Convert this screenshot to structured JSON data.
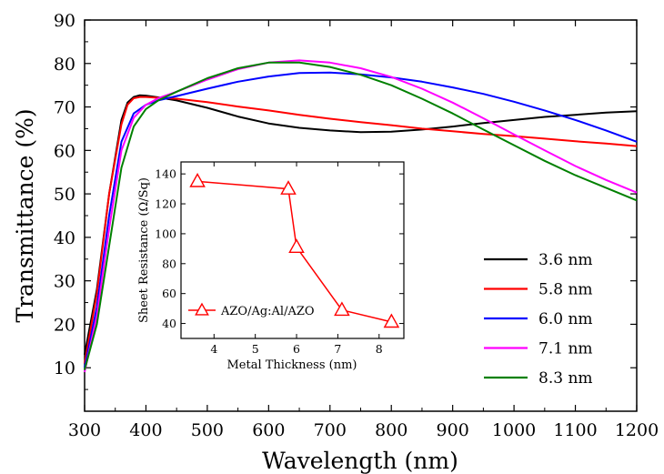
{
  "chart_data": [
    {
      "type": "line",
      "xlabel": "Wavelength (nm)",
      "ylabel": "Transmittance (%)",
      "xlim": [
        300,
        1200
      ],
      "ylim": [
        0,
        90
      ],
      "x_ticks": [
        300,
        400,
        500,
        600,
        700,
        800,
        900,
        1000,
        1100,
        1200
      ],
      "y_ticks": [
        10,
        20,
        30,
        40,
        50,
        60,
        70,
        80,
        90
      ],
      "grid": false,
      "legend_position": "bottom-right",
      "series": [
        {
          "name": "3.6 nm",
          "color": "#000000",
          "x": [
            300,
            320,
            340,
            360,
            370,
            380,
            390,
            400,
            420,
            450,
            500,
            550,
            600,
            650,
            700,
            750,
            800,
            850,
            900,
            950,
            1000,
            1050,
            1100,
            1150,
            1200
          ],
          "y": [
            13,
            28,
            50,
            67,
            71,
            72.3,
            72.7,
            72.6,
            72.2,
            71.5,
            69.8,
            67.8,
            66.2,
            65.2,
            64.6,
            64.2,
            64.3,
            64.8,
            65.5,
            66.3,
            67.0,
            67.7,
            68.2,
            68.7,
            69.0
          ]
        },
        {
          "name": "5.8 nm",
          "color": "#ff0000",
          "x": [
            300,
            320,
            340,
            360,
            370,
            380,
            390,
            400,
            420,
            450,
            500,
            550,
            600,
            650,
            700,
            750,
            800,
            850,
            900,
            950,
            1000,
            1050,
            1100,
            1150,
            1200
          ],
          "y": [
            11,
            27,
            50,
            66,
            70.5,
            72,
            72.3,
            72.3,
            72.1,
            71.9,
            71.1,
            70.1,
            69.2,
            68.2,
            67.3,
            66.5,
            65.8,
            65.0,
            64.4,
            63.8,
            63.3,
            62.7,
            62.1,
            61.6,
            61.0
          ]
        },
        {
          "name": "6.0 nm",
          "color": "#0000ff",
          "x": [
            300,
            320,
            340,
            360,
            380,
            400,
            420,
            450,
            500,
            550,
            600,
            650,
            700,
            750,
            800,
            850,
            900,
            950,
            1000,
            1050,
            1100,
            1150,
            1200
          ],
          "y": [
            10,
            24,
            45,
            62,
            68.5,
            70.5,
            71.5,
            72.5,
            74.2,
            75.8,
            77.0,
            77.8,
            77.9,
            77.5,
            76.8,
            75.8,
            74.5,
            73.0,
            71.2,
            69.2,
            67.0,
            64.6,
            62.0
          ]
        },
        {
          "name": "7.1 nm",
          "color": "#ff00ff",
          "x": [
            300,
            320,
            340,
            360,
            380,
            400,
            420,
            450,
            500,
            550,
            600,
            650,
            700,
            750,
            800,
            850,
            900,
            950,
            1000,
            1050,
            1100,
            1150,
            1200
          ],
          "y": [
            9,
            22,
            42,
            60,
            67.5,
            70.5,
            72.0,
            73.5,
            76.3,
            78.7,
            80.2,
            80.7,
            80.2,
            78.9,
            76.9,
            74.2,
            71.0,
            67.4,
            63.7,
            60.0,
            56.4,
            53.2,
            50.3
          ]
        },
        {
          "name": "8.3 nm",
          "color": "#008000",
          "x": [
            300,
            320,
            340,
            360,
            380,
            400,
            420,
            450,
            500,
            550,
            600,
            650,
            700,
            750,
            800,
            850,
            900,
            950,
            1000,
            1050,
            1100,
            1150,
            1200
          ],
          "y": [
            9.5,
            20,
            38,
            56,
            65.5,
            69.5,
            71.5,
            73.5,
            76.6,
            78.9,
            80.2,
            80.2,
            79.2,
            77.4,
            75.0,
            71.9,
            68.5,
            64.8,
            61.2,
            57.6,
            54.3,
            51.4,
            48.5
          ]
        }
      ]
    },
    {
      "type": "line",
      "xlabel": "Metal Thickness (nm)",
      "ylabel": "Sheet Resistance (Ω/Sq)",
      "xlim": [
        3.2,
        8.6
      ],
      "ylim": [
        30,
        148
      ],
      "x_ticks": [
        4,
        5,
        6,
        7,
        8
      ],
      "y_ticks": [
        40,
        60,
        80,
        100,
        120,
        140
      ],
      "legend_position": "bottom-left",
      "series": [
        {
          "name": "AZO/Ag:Al/AZO",
          "color": "#ff0000",
          "marker": "open-triangle",
          "x": [
            3.6,
            5.8,
            6.0,
            7.1,
            8.3
          ],
          "y": [
            135,
            130,
            91,
            49,
            41
          ]
        }
      ]
    }
  ]
}
